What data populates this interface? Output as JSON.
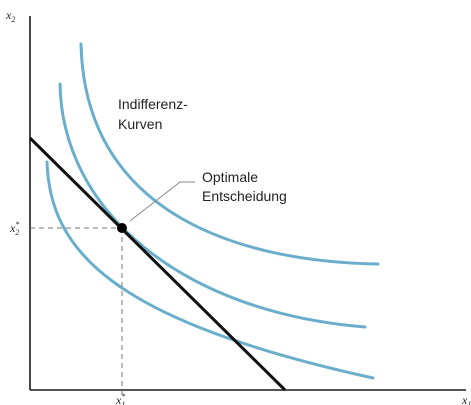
{
  "diagram": {
    "axes": {
      "y_label": "x",
      "y_label_sub": "2",
      "x_label": "x",
      "x_label_sub": "1"
    },
    "optimum": {
      "x_tick_label": "x",
      "x_tick_sub": "1",
      "x_tick_sup": "*",
      "y_tick_label": "x",
      "y_tick_sub": "2",
      "y_tick_sup": "*"
    },
    "annotations": {
      "indifference_line1": "Indifferenz-",
      "indifference_line2": "Kurven",
      "optimal_line1": "Optimale",
      "optimal_line2": "Entscheidung"
    },
    "colors": {
      "indifference_curves": "#6aaecb",
      "budget_line": "#111111",
      "axes": "#1a1a1a"
    }
  }
}
